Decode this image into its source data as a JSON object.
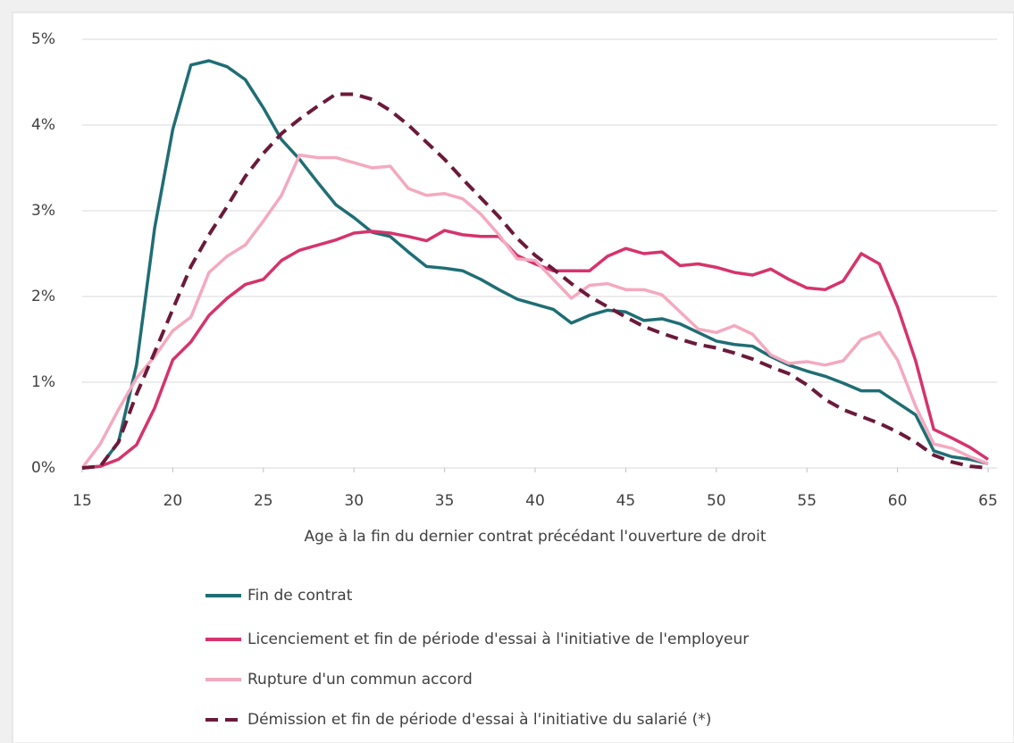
{
  "chart_data": {
    "type": "line",
    "x_label": "Age  à la fin du dernier contrat précédant l'ouverture de droit",
    "x": [
      15,
      16,
      17,
      18,
      19,
      20,
      21,
      22,
      23,
      24,
      25,
      26,
      27,
      28,
      29,
      30,
      31,
      32,
      33,
      34,
      35,
      36,
      37,
      38,
      39,
      40,
      41,
      42,
      43,
      44,
      45,
      46,
      47,
      48,
      49,
      50,
      51,
      52,
      53,
      54,
      55,
      56,
      57,
      58,
      59,
      60,
      61,
      62,
      63,
      64,
      65
    ],
    "xlim": [
      15,
      65
    ],
    "xticks": [
      15,
      20,
      25,
      30,
      35,
      40,
      45,
      50,
      55,
      60,
      65
    ],
    "ylim": [
      0,
      5
    ],
    "yticks": [
      {
        "value": 0,
        "label": "0%"
      },
      {
        "value": 1,
        "label": "1%"
      },
      {
        "value": 2,
        "label": "2%"
      },
      {
        "value": 3,
        "label": "3%"
      },
      {
        "value": 4,
        "label": "4%"
      },
      {
        "value": 5,
        "label": "5%"
      }
    ],
    "grid": true,
    "legend": "bottom",
    "series": [
      {
        "name": "Fin de contrat",
        "color": "#1f6e74",
        "dashed": false,
        "values": [
          0,
          0.02,
          0.3,
          1.2,
          2.8,
          3.95,
          4.7,
          4.75,
          4.68,
          4.53,
          4.2,
          3.83,
          3.6,
          3.33,
          3.07,
          2.92,
          2.75,
          2.7,
          2.52,
          2.35,
          2.33,
          2.3,
          2.2,
          2.08,
          1.97,
          1.91,
          1.85,
          1.69,
          1.78,
          1.84,
          1.82,
          1.72,
          1.74,
          1.68,
          1.58,
          1.48,
          1.44,
          1.42,
          1.3,
          1.2,
          1.13,
          1.07,
          0.99,
          0.9,
          0.9,
          0.76,
          0.62,
          0.2,
          0.13,
          0.1,
          0.05
        ]
      },
      {
        "name": "Licenciement et fin de période d'essai à l'initiative de l'employeur",
        "color": "#d6336c",
        "dashed": false,
        "values": [
          0,
          0.02,
          0.1,
          0.27,
          0.7,
          1.26,
          1.47,
          1.78,
          1.98,
          2.14,
          2.2,
          2.42,
          2.54,
          2.6,
          2.66,
          2.74,
          2.76,
          2.74,
          2.7,
          2.65,
          2.77,
          2.72,
          2.7,
          2.7,
          2.48,
          2.38,
          2.3,
          2.3,
          2.3,
          2.47,
          2.56,
          2.5,
          2.52,
          2.36,
          2.38,
          2.34,
          2.28,
          2.25,
          2.32,
          2.2,
          2.1,
          2.08,
          2.18,
          2.5,
          2.38,
          1.88,
          1.25,
          0.45,
          0.35,
          0.24,
          0.1
        ]
      },
      {
        "name": "Rupture d'un commun accord",
        "color": "#f4a9bf",
        "dashed": false,
        "values": [
          0,
          0.28,
          0.68,
          1.05,
          1.3,
          1.6,
          1.76,
          2.28,
          2.47,
          2.6,
          2.88,
          3.18,
          3.65,
          3.62,
          3.62,
          3.56,
          3.5,
          3.52,
          3.26,
          3.18,
          3.2,
          3.14,
          2.96,
          2.72,
          2.44,
          2.42,
          2.2,
          1.98,
          2.13,
          2.15,
          2.08,
          2.08,
          2.02,
          1.82,
          1.62,
          1.58,
          1.66,
          1.56,
          1.32,
          1.22,
          1.24,
          1.2,
          1.25,
          1.5,
          1.58,
          1.26,
          0.72,
          0.28,
          0.23,
          0.13,
          0.05
        ]
      },
      {
        "name": "Démission et fin de période d'essai à l'initiative du salarié (*)",
        "color": "#6b1a3a",
        "dashed": true,
        "values": [
          0,
          0.02,
          0.3,
          0.86,
          1.35,
          1.85,
          2.35,
          2.72,
          3.05,
          3.4,
          3.67,
          3.9,
          4.07,
          4.22,
          4.36,
          4.36,
          4.3,
          4.17,
          4.0,
          3.8,
          3.6,
          3.37,
          3.15,
          2.93,
          2.68,
          2.48,
          2.32,
          2.15,
          2.0,
          1.88,
          1.76,
          1.65,
          1.57,
          1.5,
          1.44,
          1.4,
          1.34,
          1.27,
          1.18,
          1.1,
          0.97,
          0.8,
          0.68,
          0.6,
          0.52,
          0.42,
          0.3,
          0.15,
          0.07,
          0.02,
          0
        ]
      }
    ]
  }
}
